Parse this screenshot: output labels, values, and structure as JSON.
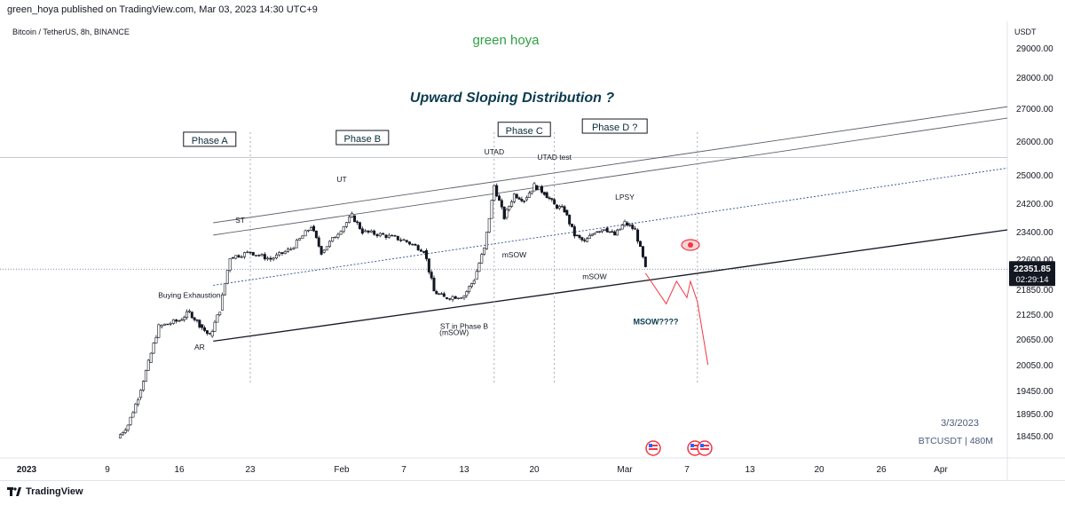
{
  "header": {
    "published": "green_hoya published on TradingView.com, Mar 03, 2023 14:30 UTC+9"
  },
  "footer": {
    "brand": "TradingView"
  },
  "chart_data": {
    "type": "candlestick",
    "symbol_title": "Bitcoin / TetherUS, 8h, BINANCE",
    "author_watermark": "green hoya",
    "title": "Upward Sloping Distribution ?",
    "currency": "USDT",
    "y_ticks": [
      29000,
      28000,
      27000,
      26000,
      25000,
      24200,
      23400,
      22600,
      21850,
      21250,
      20650,
      20050,
      19450,
      18950,
      18450
    ],
    "y_tick_labels": [
      "29000.00",
      "28000.00",
      "27000.00",
      "26000.00",
      "25000.00",
      "24200.00",
      "23400.00",
      "22600.00",
      "21850.00",
      "21250.00",
      "20650.00",
      "20050.00",
      "19450.00",
      "18950.00",
      "18450.00"
    ],
    "x_ticks": [
      {
        "label": "2023",
        "date": "2023-01-01",
        "bold": true
      },
      {
        "label": "9",
        "date": "2023-01-09"
      },
      {
        "label": "16",
        "date": "2023-01-16"
      },
      {
        "label": "23",
        "date": "2023-01-23"
      },
      {
        "label": "Feb",
        "date": "2023-02-01"
      },
      {
        "label": "7",
        "date": "2023-02-07"
      },
      {
        "label": "13",
        "date": "2023-02-13"
      },
      {
        "label": "20",
        "date": "2023-02-20"
      },
      {
        "label": "Mar",
        "date": "2023-03-01"
      },
      {
        "label": "7",
        "date": "2023-03-07"
      },
      {
        "label": "13",
        "date": "2023-03-13"
      },
      {
        "label": "20",
        "date": "2023-03-20"
      },
      {
        "label": "26",
        "date": "2023-03-26"
      },
      {
        "label": "Apr",
        "date": "2023-04-01"
      }
    ],
    "current_price": {
      "value": 22351.85,
      "label": "22351.85",
      "countdown": "02:29:14"
    },
    "price_path": [
      [
        "2023-01-10",
        18400
      ],
      [
        "2023-01-11",
        18700
      ],
      [
        "2023-01-12",
        19300
      ],
      [
        "2023-01-13",
        20100
      ],
      [
        "2023-01-14",
        20950
      ],
      [
        "2023-01-16",
        21100
      ],
      [
        "2023-01-17",
        21300
      ],
      [
        "2023-01-18",
        21000
      ],
      [
        "2023-01-19",
        20720
      ],
      [
        "2023-01-20",
        21350
      ],
      [
        "2023-01-21",
        22650
      ],
      [
        "2023-01-23",
        22800
      ],
      [
        "2023-01-25",
        22600
      ],
      [
        "2023-01-27",
        22900
      ],
      [
        "2023-01-29",
        23550
      ],
      [
        "2023-01-30",
        22800
      ],
      [
        "2023-02-02",
        23850
      ],
      [
        "2023-02-03",
        23400
      ],
      [
        "2023-02-05",
        23300
      ],
      [
        "2023-02-07",
        23150
      ],
      [
        "2023-02-09",
        22850
      ],
      [
        "2023-02-10",
        21800
      ],
      [
        "2023-02-11",
        21650
      ],
      [
        "2023-02-13",
        21700
      ],
      [
        "2023-02-14",
        22100
      ],
      [
        "2023-02-15",
        22900
      ],
      [
        "2023-02-16",
        24700
      ],
      [
        "2023-02-17",
        23800
      ],
      [
        "2023-02-18",
        24450
      ],
      [
        "2023-02-19",
        24300
      ],
      [
        "2023-02-20",
        24700
      ],
      [
        "2023-02-21",
        24500
      ],
      [
        "2023-02-22",
        24150
      ],
      [
        "2023-02-23",
        24000
      ],
      [
        "2023-02-24",
        23300
      ],
      [
        "2023-02-25",
        23100
      ],
      [
        "2023-02-26",
        23400
      ],
      [
        "2023-02-27",
        23500
      ],
      [
        "2023-02-28",
        23300
      ],
      [
        "2023-03-01",
        23650
      ],
      [
        "2023-03-02",
        23450
      ],
      [
        "2023-03-03",
        22351.85
      ]
    ],
    "levels": [
      {
        "name": "upper-channel-1",
        "from": [
          "2023-01-19",
          23650
        ],
        "to": [
          "2023-04-01",
          27050
        ],
        "style": "solid"
      },
      {
        "name": "upper-channel-2",
        "from": [
          "2023-01-19",
          23300
        ],
        "to": [
          "2023-04-01",
          26700
        ],
        "style": "solid"
      },
      {
        "name": "mid-channel",
        "from": [
          "2023-01-19",
          21950
        ],
        "to": [
          "2023-04-01",
          25200
        ],
        "style": "dotted"
      },
      {
        "name": "lower-channel",
        "from": [
          "2023-01-19",
          20600
        ],
        "to": [
          "2023-04-01",
          23450
        ],
        "style": "solid"
      }
    ],
    "projection": [
      [
        "2023-03-03",
        22250
      ],
      [
        "2023-03-05",
        21500
      ],
      [
        "2023-03-06",
        22050
      ],
      [
        "2023-03-07",
        21650
      ],
      [
        "2023-03-07",
        22050
      ],
      [
        "2023-03-08",
        21550
      ],
      [
        "2023-03-09",
        20050
      ]
    ],
    "phase_dividers": [
      "2023-01-23",
      "2023-02-16",
      "2023-02-22",
      "2023-03-08"
    ],
    "high_line": 25300,
    "annotations": [
      {
        "text": "Phase A",
        "date": "2023-01-19",
        "price": 25950,
        "boxed": true
      },
      {
        "text": "Phase B",
        "date": "2023-02-03",
        "price": 26000,
        "boxed": true
      },
      {
        "text": "Phase C",
        "date": "2023-02-19",
        "price": 26250,
        "boxed": true
      },
      {
        "text": "Phase D ?",
        "date": "2023-02-28",
        "price": 26350,
        "boxed": true
      },
      {
        "text": "UTAD",
        "date": "2023-02-16",
        "price": 25600
      },
      {
        "text": "UTAD test",
        "date": "2023-02-22",
        "price": 25450
      },
      {
        "text": "UT",
        "date": "2023-02-01",
        "price": 24800
      },
      {
        "text": "ST",
        "date": "2023-01-22",
        "price": 23650
      },
      {
        "text": "LPSY",
        "date": "2023-03-01",
        "price": 24300
      },
      {
        "text": "mSOW",
        "date": "2023-02-18",
        "price": 22650
      },
      {
        "text": "mSOW",
        "date": "2023-02-26",
        "price": 22100
      },
      {
        "text": "Buying Exhaustion",
        "date": "2023-01-17",
        "price": 21650
      },
      {
        "text": "ST in Phase B",
        "date": "2023-02-13",
        "price": 20900
      },
      {
        "text": "(mSOW)",
        "date": "2023-02-12",
        "price": 20750
      },
      {
        "text": "MSOW????",
        "date": "2023-03-04",
        "price": 21000
      },
      {
        "text": "AR",
        "date": "2023-01-18",
        "price": 20400
      }
    ],
    "watermark_date": "3/3/2023",
    "watermark_symbol": "BTCUSDT | 480M",
    "colors": {
      "up": "#131722",
      "down": "#131722",
      "channel": "#5d606b",
      "projection": "#f23645",
      "text_green": "#2ea043",
      "title": "#0b3b4f",
      "price_label": "#131722"
    }
  }
}
